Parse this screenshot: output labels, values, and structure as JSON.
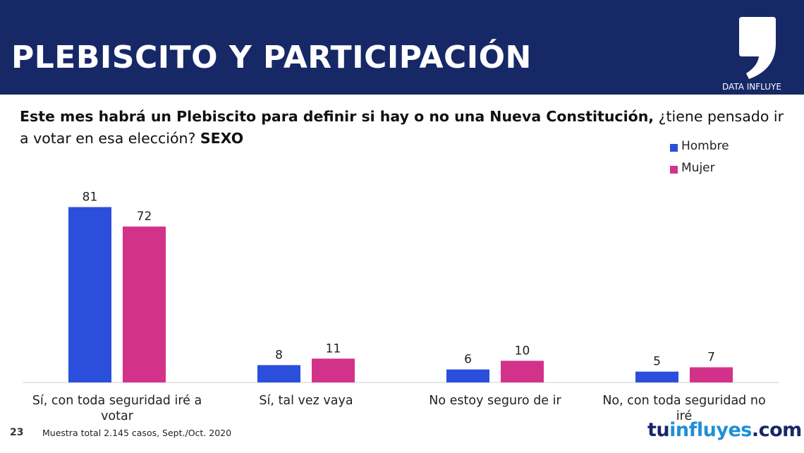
{
  "header": {
    "title": "PLEBISCITO Y PARTICIPACIÓN",
    "logo_text": "DATA INFLUYE"
  },
  "question": {
    "bold_part": "Este mes habrá un Plebiscito para definir si hay o no una Nueva Constitución,",
    "normal_part": " ¿tiene pensado ir a votar en esa elección?",
    "bold_suffix": "SEXO"
  },
  "colors": {
    "header_bg": "#172867",
    "hombre": "#2b4fdc",
    "mujer": "#d3328a",
    "brand_accent": "#1f8fd6"
  },
  "chart_data": {
    "type": "bar",
    "categories": [
      "Sí, con toda seguridad iré a votar",
      "Sí, tal vez vaya",
      "No estoy seguro de ir",
      "No, con toda seguridad no iré"
    ],
    "series": [
      {
        "name": "Hombre",
        "values": [
          81,
          8,
          6,
          5
        ]
      },
      {
        "name": "Mujer",
        "values": [
          72,
          11,
          10,
          7
        ]
      }
    ],
    "ylim": [
      0,
      88
    ],
    "grid": false,
    "legend_position": "top-right",
    "data_labels": true
  },
  "footer": {
    "slide_number": "23",
    "note": "Muestra total 2.145 casos,  Sept./Oct. 2020",
    "brand_start": "tu",
    "brand_mid": "influyes",
    "brand_end": ".com"
  }
}
